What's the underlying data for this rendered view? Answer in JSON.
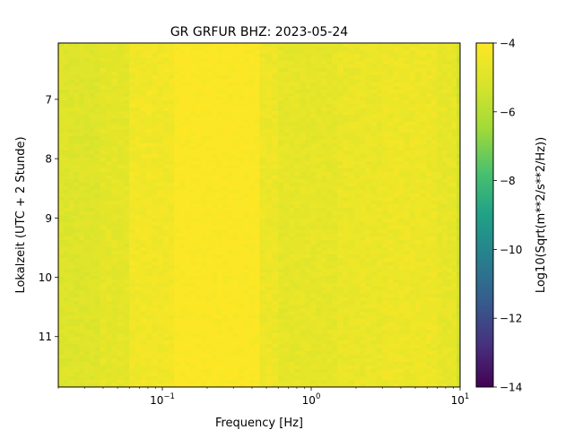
{
  "chart_data": {
    "type": "heatmap",
    "title": "GR GRFUR  BHZ: 2023-05-24",
    "xlabel": "Frequency [Hz]",
    "ylabel": "Lokalzeit (UTC + 2 Stunde)",
    "colorbar_label": "Log10(Sqrt(m**2/s**2/Hz))",
    "x_scale": "log",
    "xlim": [
      0.02,
      10
    ],
    "x_ticks": [
      {
        "value": 0.1,
        "base": "10",
        "exp": "−1"
      },
      {
        "value": 1,
        "base": "10",
        "exp": "0"
      },
      {
        "value": 10,
        "base": "10",
        "exp": "1"
      }
    ],
    "ylim": [
      6.05,
      11.85
    ],
    "y_inverted": true,
    "y_ticks": [
      {
        "value": 7,
        "label": "7"
      },
      {
        "value": 8,
        "label": "8"
      },
      {
        "value": 9,
        "label": "9"
      },
      {
        "value": 10,
        "label": "10"
      },
      {
        "value": 11,
        "label": "11"
      }
    ],
    "color_range": [
      -14,
      -4
    ],
    "colorbar_ticks": [
      {
        "value": -4,
        "label": "−4"
      },
      {
        "value": -6,
        "label": "−6"
      },
      {
        "value": -8,
        "label": "−8"
      },
      {
        "value": -10,
        "label": "−10"
      },
      {
        "value": -12,
        "label": "−12"
      },
      {
        "value": -14,
        "label": "−14"
      }
    ],
    "colormap": "viridis",
    "bands": [
      {
        "f_min": 0.02,
        "f_max": 0.038,
        "value": -5.0
      },
      {
        "f_min": 0.038,
        "f_max": 0.06,
        "value": -4.8
      },
      {
        "f_min": 0.06,
        "f_max": 0.12,
        "value": -4.4
      },
      {
        "f_min": 0.12,
        "f_max": 0.45,
        "value": -4.05
      },
      {
        "f_min": 0.45,
        "f_max": 0.6,
        "value": -4.5
      },
      {
        "f_min": 0.6,
        "f_max": 1.5,
        "value": -4.75
      },
      {
        "f_min": 1.5,
        "f_max": 3.0,
        "value": -4.6
      },
      {
        "f_min": 3.0,
        "f_max": 7.0,
        "value": -4.5
      },
      {
        "f_min": 7.0,
        "f_max": 9.5,
        "value": -4.7
      },
      {
        "f_min": 9.5,
        "f_max": 10,
        "value": -5.4
      }
    ]
  }
}
